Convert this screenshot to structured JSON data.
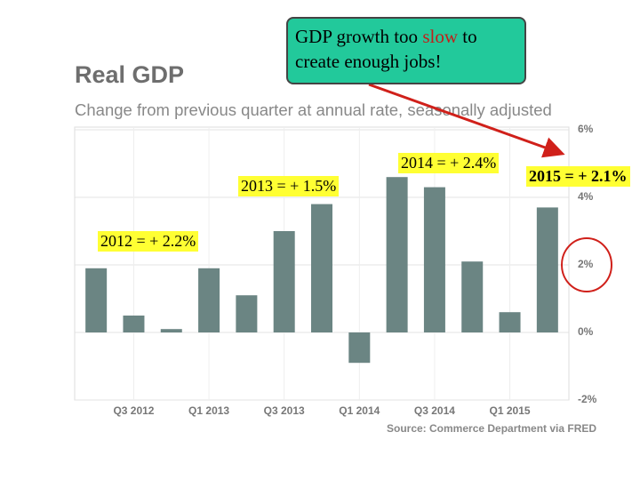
{
  "chart_data": {
    "type": "bar",
    "title": "Real GDP",
    "subtitle": "Change from previous quarter at annual rate, seasonally adjusted",
    "source": "Source: Commerce Department via FRED",
    "categories": [
      null,
      "Q3 2012",
      null,
      "Q1 2013",
      null,
      "Q3 2013",
      null,
      "Q1 2014",
      null,
      "Q3 2014",
      null,
      "Q1 2015",
      null
    ],
    "values": [
      1.9,
      0.5,
      0.1,
      1.9,
      1.1,
      3.0,
      3.8,
      -0.9,
      4.6,
      4.3,
      2.1,
      0.6,
      3.7
    ],
    "color": "#6b8583",
    "ylim": [
      -2,
      6
    ],
    "yticks": [
      {
        "value": -2,
        "label": "-2%"
      },
      {
        "value": 0,
        "label": "0%"
      },
      {
        "value": 2,
        "label": "2%"
      },
      {
        "value": 4,
        "label": "4%"
      },
      {
        "value": 6,
        "label": "6%"
      }
    ],
    "grid": true,
    "callout": [
      "GDP growth too ",
      "slow",
      " to create enough jobs!"
    ],
    "annotations": [
      "2012 = + 2.2%",
      "2013 = + 1.5%",
      "2014 = + 2.4%",
      "2015 = + 2.1%"
    ]
  }
}
